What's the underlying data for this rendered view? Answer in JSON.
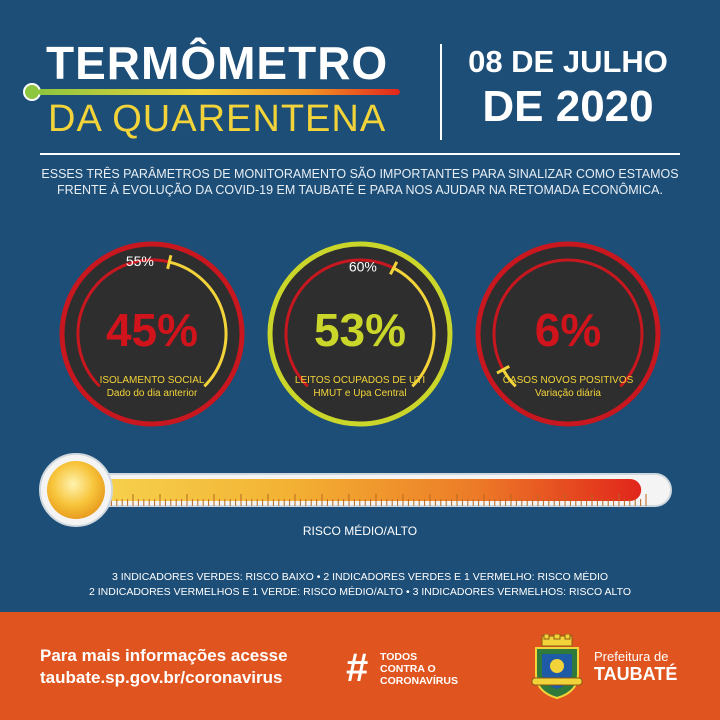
{
  "header": {
    "title_line1": "TERMÔMETRO",
    "title_line2": "DA QUARENTENA",
    "date_line1": "08 DE JULHO",
    "date_line2": "DE 2020"
  },
  "intro": "ESSES TRÊS PARÂMETROS DE MONITORAMENTO SÃO IMPORTANTES PARA SINALIZAR COMO ESTAMOS FRENTE À EVOLUÇÃO DA COVID-19 EM TAUBATÉ E PARA NOS AJUDAR NA RETOMADA ECONÔMICA.",
  "indicators": [
    {
      "value_label": "45%",
      "value": 45,
      "reference_label": "55%",
      "reference": 55,
      "label_line1": "ISOLAMENTO SOCIAL",
      "label_line2": "Dado do dia anterior",
      "status_color": "#c8171e",
      "value_color": "#d1141c"
    },
    {
      "value_label": "53%",
      "value": 53,
      "reference_label": "60%",
      "reference": 60,
      "label_line1": "LEITOS OCUPADOS DE UTI",
      "label_line2": "HMUT e Upa Central",
      "status_color": "#cbd62a",
      "value_color": "#cbd62a"
    },
    {
      "value_label": "6%",
      "value": 6,
      "label_line1": "CASOS NOVOS POSITIVOS",
      "label_line2": "Variação diária",
      "status_color": "#c8171e",
      "value_color": "#d1141c"
    }
  ],
  "thermometer": {
    "level": 0.97,
    "risk_label": "RISCO MÉDIO/ALTO"
  },
  "legend": {
    "line1": "3 INDICADORES VERDES: RISCO BAIXO  •  2 INDICADORES VERDES E 1 VERMELHO: RISCO MÉDIO",
    "line2": "2 INDICADORES VERMELHOS E 1 VERDE: RISCO MÉDIO/ALTO  •  3 INDICADORES VERMELHOS: RISCO ALTO"
  },
  "footer": {
    "info_line1": "Para mais informações acesse",
    "info_line2": "taubate.sp.gov.br/coronavirus",
    "campaign_hash": "#",
    "campaign_line1": "TODOS",
    "campaign_line2": "CONTRA O",
    "campaign_line3": "CORONAVÍRUS",
    "prefeitura_line1": "Prefeitura de",
    "prefeitura_line2": "TAUBATÉ"
  },
  "colors": {
    "background": "#1d4e77",
    "footer": "#e0551f",
    "accent_yellow": "#f2d43a",
    "red": "#c8171e",
    "green_yellow": "#cbd62a"
  }
}
